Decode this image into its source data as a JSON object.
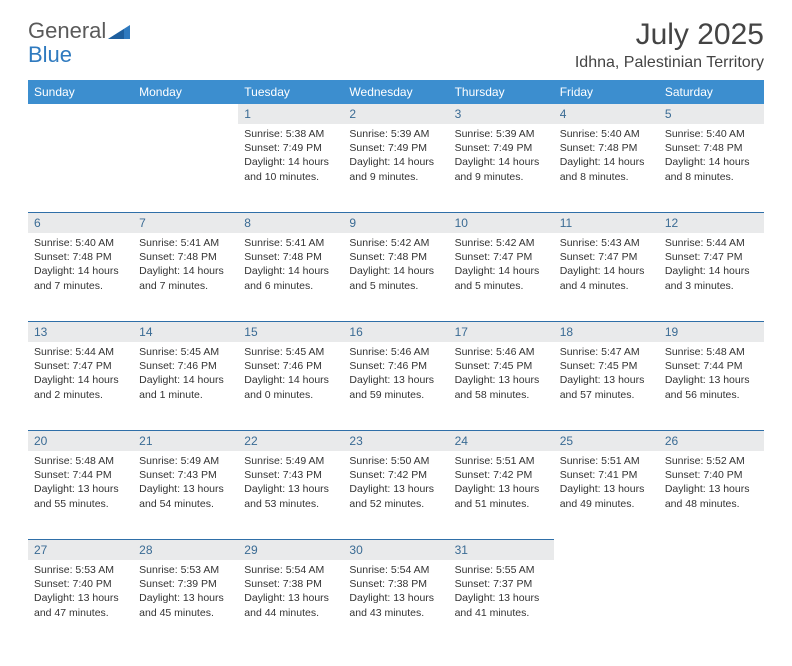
{
  "brand": {
    "name1": "General",
    "name2": "Blue"
  },
  "title": "July 2025",
  "location": "Idhna, Palestinian Territory",
  "colors": {
    "header_bg": "#3c8ecf",
    "header_text": "#ffffff",
    "daynum_bg": "#e9eaeb",
    "daynum_text": "#3a6b94",
    "row_divider": "#2f6fa8",
    "body_text": "#333333",
    "brand_gray": "#5a5a5a",
    "brand_blue": "#2f7abf"
  },
  "day_headers": [
    "Sunday",
    "Monday",
    "Tuesday",
    "Wednesday",
    "Thursday",
    "Friday",
    "Saturday"
  ],
  "weeks": [
    [
      null,
      null,
      {
        "n": "1",
        "sunrise": "5:38 AM",
        "sunset": "7:49 PM",
        "daylight": "14 hours and 10 minutes."
      },
      {
        "n": "2",
        "sunrise": "5:39 AM",
        "sunset": "7:49 PM",
        "daylight": "14 hours and 9 minutes."
      },
      {
        "n": "3",
        "sunrise": "5:39 AM",
        "sunset": "7:49 PM",
        "daylight": "14 hours and 9 minutes."
      },
      {
        "n": "4",
        "sunrise": "5:40 AM",
        "sunset": "7:48 PM",
        "daylight": "14 hours and 8 minutes."
      },
      {
        "n": "5",
        "sunrise": "5:40 AM",
        "sunset": "7:48 PM",
        "daylight": "14 hours and 8 minutes."
      }
    ],
    [
      {
        "n": "6",
        "sunrise": "5:40 AM",
        "sunset": "7:48 PM",
        "daylight": "14 hours and 7 minutes."
      },
      {
        "n": "7",
        "sunrise": "5:41 AM",
        "sunset": "7:48 PM",
        "daylight": "14 hours and 7 minutes."
      },
      {
        "n": "8",
        "sunrise": "5:41 AM",
        "sunset": "7:48 PM",
        "daylight": "14 hours and 6 minutes."
      },
      {
        "n": "9",
        "sunrise": "5:42 AM",
        "sunset": "7:48 PM",
        "daylight": "14 hours and 5 minutes."
      },
      {
        "n": "10",
        "sunrise": "5:42 AM",
        "sunset": "7:47 PM",
        "daylight": "14 hours and 5 minutes."
      },
      {
        "n": "11",
        "sunrise": "5:43 AM",
        "sunset": "7:47 PM",
        "daylight": "14 hours and 4 minutes."
      },
      {
        "n": "12",
        "sunrise": "5:44 AM",
        "sunset": "7:47 PM",
        "daylight": "14 hours and 3 minutes."
      }
    ],
    [
      {
        "n": "13",
        "sunrise": "5:44 AM",
        "sunset": "7:47 PM",
        "daylight": "14 hours and 2 minutes."
      },
      {
        "n": "14",
        "sunrise": "5:45 AM",
        "sunset": "7:46 PM",
        "daylight": "14 hours and 1 minute."
      },
      {
        "n": "15",
        "sunrise": "5:45 AM",
        "sunset": "7:46 PM",
        "daylight": "14 hours and 0 minutes."
      },
      {
        "n": "16",
        "sunrise": "5:46 AM",
        "sunset": "7:46 PM",
        "daylight": "13 hours and 59 minutes."
      },
      {
        "n": "17",
        "sunrise": "5:46 AM",
        "sunset": "7:45 PM",
        "daylight": "13 hours and 58 minutes."
      },
      {
        "n": "18",
        "sunrise": "5:47 AM",
        "sunset": "7:45 PM",
        "daylight": "13 hours and 57 minutes."
      },
      {
        "n": "19",
        "sunrise": "5:48 AM",
        "sunset": "7:44 PM",
        "daylight": "13 hours and 56 minutes."
      }
    ],
    [
      {
        "n": "20",
        "sunrise": "5:48 AM",
        "sunset": "7:44 PM",
        "daylight": "13 hours and 55 minutes."
      },
      {
        "n": "21",
        "sunrise": "5:49 AM",
        "sunset": "7:43 PM",
        "daylight": "13 hours and 54 minutes."
      },
      {
        "n": "22",
        "sunrise": "5:49 AM",
        "sunset": "7:43 PM",
        "daylight": "13 hours and 53 minutes."
      },
      {
        "n": "23",
        "sunrise": "5:50 AM",
        "sunset": "7:42 PM",
        "daylight": "13 hours and 52 minutes."
      },
      {
        "n": "24",
        "sunrise": "5:51 AM",
        "sunset": "7:42 PM",
        "daylight": "13 hours and 51 minutes."
      },
      {
        "n": "25",
        "sunrise": "5:51 AM",
        "sunset": "7:41 PM",
        "daylight": "13 hours and 49 minutes."
      },
      {
        "n": "26",
        "sunrise": "5:52 AM",
        "sunset": "7:40 PM",
        "daylight": "13 hours and 48 minutes."
      }
    ],
    [
      {
        "n": "27",
        "sunrise": "5:53 AM",
        "sunset": "7:40 PM",
        "daylight": "13 hours and 47 minutes."
      },
      {
        "n": "28",
        "sunrise": "5:53 AM",
        "sunset": "7:39 PM",
        "daylight": "13 hours and 45 minutes."
      },
      {
        "n": "29",
        "sunrise": "5:54 AM",
        "sunset": "7:38 PM",
        "daylight": "13 hours and 44 minutes."
      },
      {
        "n": "30",
        "sunrise": "5:54 AM",
        "sunset": "7:38 PM",
        "daylight": "13 hours and 43 minutes."
      },
      {
        "n": "31",
        "sunrise": "5:55 AM",
        "sunset": "7:37 PM",
        "daylight": "13 hours and 41 minutes."
      },
      null,
      null
    ]
  ]
}
